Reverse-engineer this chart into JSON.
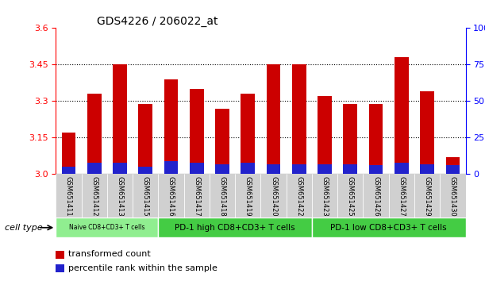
{
  "title": "GDS4226 / 206022_at",
  "samples": [
    "GSM651411",
    "GSM651412",
    "GSM651413",
    "GSM651415",
    "GSM651416",
    "GSM651417",
    "GSM651418",
    "GSM651419",
    "GSM651420",
    "GSM651422",
    "GSM651423",
    "GSM651425",
    "GSM651426",
    "GSM651427",
    "GSM651429",
    "GSM651430"
  ],
  "transformed_count": [
    3.17,
    3.33,
    3.45,
    3.29,
    3.39,
    3.35,
    3.27,
    3.33,
    3.45,
    3.45,
    3.32,
    3.29,
    3.29,
    3.48,
    3.34,
    3.07
  ],
  "percentile_rank_pct": [
    5,
    8,
    8,
    5,
    9,
    8,
    7,
    8,
    7,
    7,
    7,
    7,
    6,
    8,
    7,
    6
  ],
  "ymin": 3.0,
  "ymax": 3.6,
  "yticks": [
    3.0,
    3.15,
    3.3,
    3.45,
    3.6
  ],
  "right_yticks": [
    0,
    25,
    50,
    75,
    100
  ],
  "bar_color_red": "#cc0000",
  "bar_color_blue": "#2222cc",
  "groups": [
    {
      "label": "Naive CD8+CD3+ T cells",
      "start": 0,
      "end": 4,
      "color": "#90ee90"
    },
    {
      "label": "PD-1 high CD8+CD3+ T cells",
      "start": 4,
      "end": 10,
      "color": "#44cc44"
    },
    {
      "label": "PD-1 low CD8+CD3+ T cells",
      "start": 10,
      "end": 16,
      "color": "#44cc44"
    }
  ],
  "cell_type_label": "cell type",
  "legend_items": [
    {
      "label": "transformed count",
      "color": "#cc0000"
    },
    {
      "label": "percentile rank within the sample",
      "color": "#2222cc"
    }
  ],
  "background_color": "#ffffff",
  "bar_width": 0.55,
  "title_fontsize": 10
}
